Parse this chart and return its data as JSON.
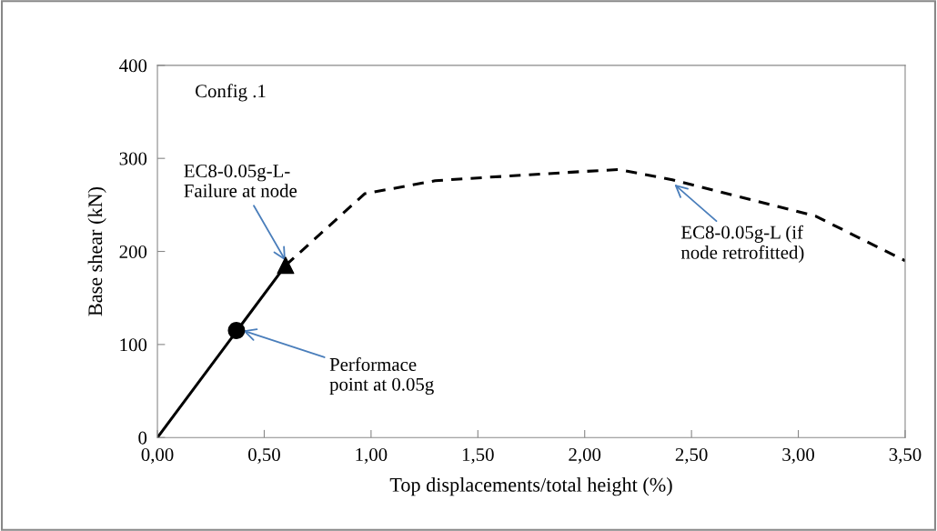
{
  "chart_data": {
    "type": "line",
    "xlabel": "Top displacements/total height (%)",
    "ylabel": "Base shear (kN)",
    "series": [
      {
        "color": "#000000",
        "x": [
          0,
          0.6
        ],
        "values": [
          0,
          185
        ],
        "line_style": "solid",
        "marker": "none"
      },
      {
        "color": "#000000",
        "x": [
          0.6,
          0.97,
          1.3,
          1.5,
          2.0,
          2.16,
          2.41,
          3.08,
          3.5
        ],
        "values": [
          185,
          262,
          276,
          279,
          286,
          288,
          277,
          238,
          190
        ],
        "line_style": "dashed",
        "marker": "none"
      },
      {
        "type": "scatter",
        "color": "#000000",
        "x": [
          0.37
        ],
        "values": [
          115
        ],
        "marker": "circle"
      },
      {
        "type": "scatter",
        "color": "#000000",
        "x": [
          0.6
        ],
        "values": [
          185
        ],
        "marker": "triangle"
      }
    ],
    "xlim": [
      0,
      3.5
    ],
    "ylim": [
      0,
      400
    ],
    "xticks": [
      {
        "value": 0,
        "label": "0,00"
      },
      {
        "value": 0.5,
        "label": "0,50"
      },
      {
        "value": 1,
        "label": "1,00"
      },
      {
        "value": 1.5,
        "label": "1,50"
      },
      {
        "value": 2,
        "label": "2,00"
      },
      {
        "value": 2.5,
        "label": "2,50"
      },
      {
        "value": 3,
        "label": "3,00"
      },
      {
        "value": 3.5,
        "label": "3,50"
      }
    ],
    "yticks": [
      0,
      100,
      200,
      300,
      400
    ],
    "grid": false,
    "legend": false,
    "annotations": [
      "Config .1",
      {
        "text": "EC8-0.05g-L-\nFailure at node",
        "x": 0.6,
        "y": 190
      },
      {
        "text": "Performace\npoint at 0.05g",
        "x": 0.4,
        "y": 115
      },
      {
        "text": "EC8-0.05g-L (if\nnode retrofitted)",
        "x": 2.42,
        "y": 272
      }
    ]
  }
}
